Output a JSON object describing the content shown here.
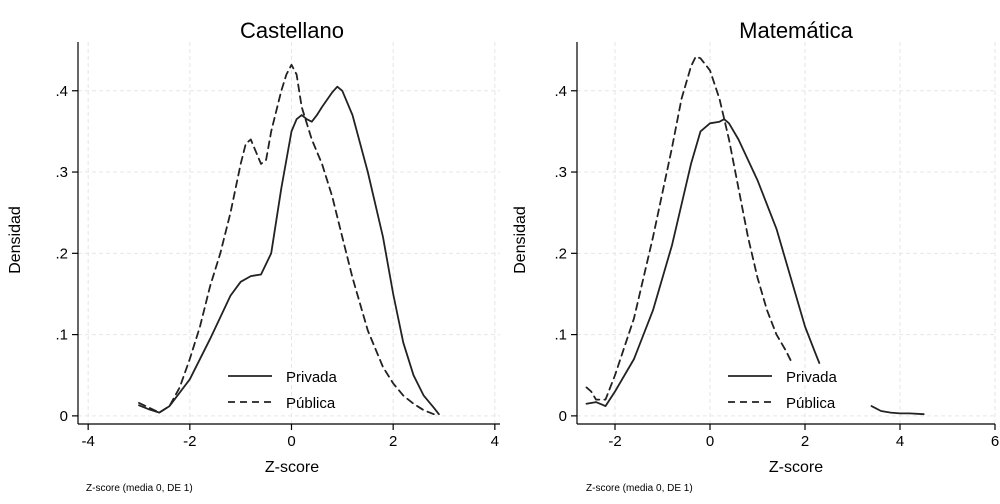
{
  "chart_data": [
    {
      "type": "line",
      "title": "Castellano",
      "xlabel": "Z-score",
      "ylabel": "Densidad",
      "note": "Z-score (media 0, DE 1)",
      "xlim": [
        -4.2,
        4.2
      ],
      "ylim": [
        -0.01,
        0.46
      ],
      "x_ticks": [
        -4,
        -2,
        0,
        2,
        4
      ],
      "x_tick_labels": [
        "-4",
        "-2",
        "0",
        "2",
        "4"
      ],
      "y_ticks": [
        0,
        0.1,
        0.2,
        0.3,
        0.4
      ],
      "y_tick_labels": [
        "0",
        ".1",
        ".2",
        ".3",
        ".4"
      ],
      "grid": true,
      "legend_position": "bottom-right",
      "series": [
        {
          "name": "Privada",
          "style": "solid",
          "x": [
            -3.0,
            -2.8,
            -2.6,
            -2.4,
            -2.0,
            -1.6,
            -1.2,
            -1.0,
            -0.8,
            -0.6,
            -0.4,
            -0.2,
            0.0,
            0.1,
            0.2,
            0.3,
            0.4,
            0.5,
            0.6,
            0.8,
            0.9,
            1.0,
            1.2,
            1.5,
            1.8,
            2.0,
            2.2,
            2.4,
            2.6,
            2.8,
            2.9
          ],
          "y": [
            0.013,
            0.008,
            0.004,
            0.012,
            0.045,
            0.095,
            0.148,
            0.165,
            0.172,
            0.174,
            0.2,
            0.28,
            0.35,
            0.365,
            0.37,
            0.365,
            0.362,
            0.37,
            0.38,
            0.398,
            0.405,
            0.4,
            0.37,
            0.3,
            0.22,
            0.15,
            0.09,
            0.05,
            0.025,
            0.01,
            0.002
          ]
        },
        {
          "name": "Pública",
          "style": "dashed",
          "x": [
            -3.0,
            -2.8,
            -2.6,
            -2.4,
            -2.2,
            -2.0,
            -1.8,
            -1.6,
            -1.4,
            -1.2,
            -1.0,
            -0.9,
            -0.8,
            -0.7,
            -0.6,
            -0.5,
            -0.4,
            -0.2,
            -0.1,
            0.0,
            0.1,
            0.2,
            0.4,
            0.6,
            0.8,
            1.0,
            1.2,
            1.5,
            1.8,
            2.0,
            2.2,
            2.4,
            2.6,
            2.8
          ],
          "y": [
            0.016,
            0.01,
            0.004,
            0.012,
            0.035,
            0.07,
            0.11,
            0.16,
            0.2,
            0.25,
            0.31,
            0.335,
            0.34,
            0.325,
            0.31,
            0.315,
            0.35,
            0.4,
            0.42,
            0.432,
            0.42,
            0.38,
            0.34,
            0.31,
            0.27,
            0.22,
            0.17,
            0.105,
            0.06,
            0.04,
            0.025,
            0.015,
            0.007,
            0.002
          ]
        }
      ]
    },
    {
      "type": "line",
      "title": "Matemática",
      "xlabel": "Z-score",
      "ylabel": "Densidad",
      "note": "Z-score (media 0, DE 1)",
      "xlim": [
        -2.8,
        6.0
      ],
      "ylim": [
        -0.01,
        0.46
      ],
      "x_ticks": [
        -2,
        0,
        2,
        4,
        6
      ],
      "x_tick_labels": [
        "-2",
        "0",
        "2",
        "4",
        "6"
      ],
      "y_ticks": [
        0,
        0.1,
        0.2,
        0.3,
        0.4
      ],
      "y_tick_labels": [
        "0",
        ".1",
        ".2",
        ".3",
        ".4"
      ],
      "grid": true,
      "legend_position": "bottom-right",
      "series": [
        {
          "name": "Privada",
          "style": "solid",
          "x": [
            -2.6,
            -2.4,
            -2.2,
            -2.0,
            -1.6,
            -1.2,
            -0.8,
            -0.4,
            -0.2,
            0.0,
            0.2,
            0.3,
            0.4,
            0.6,
            1.0,
            1.4,
            1.8,
            2.0,
            2.2,
            2.3
          ],
          "y": [
            0.015,
            0.017,
            0.012,
            0.03,
            0.07,
            0.13,
            0.21,
            0.31,
            0.35,
            0.36,
            0.362,
            0.365,
            0.36,
            0.34,
            0.29,
            0.23,
            0.15,
            0.11,
            0.08,
            0.065
          ]
        },
        {
          "name": "Pública",
          "style": "dashed",
          "x": [
            -2.6,
            -2.5,
            -2.4,
            -2.2,
            -2.0,
            -1.6,
            -1.2,
            -0.8,
            -0.6,
            -0.4,
            -0.3,
            -0.2,
            0.0,
            0.2,
            0.4,
            0.6,
            0.8,
            1.0,
            1.2,
            1.4,
            1.6,
            1.7
          ],
          "y": [
            0.035,
            0.03,
            0.02,
            0.02,
            0.05,
            0.12,
            0.22,
            0.33,
            0.39,
            0.43,
            0.442,
            0.44,
            0.425,
            0.39,
            0.34,
            0.28,
            0.22,
            0.17,
            0.13,
            0.1,
            0.08,
            0.068
          ]
        },
        {
          "name": "",
          "style": "solid",
          "x": [
            3.4,
            3.6,
            3.8,
            4.0,
            4.2,
            4.5
          ],
          "y": [
            0.012,
            0.006,
            0.004,
            0.003,
            0.003,
            0.002
          ]
        }
      ]
    }
  ]
}
